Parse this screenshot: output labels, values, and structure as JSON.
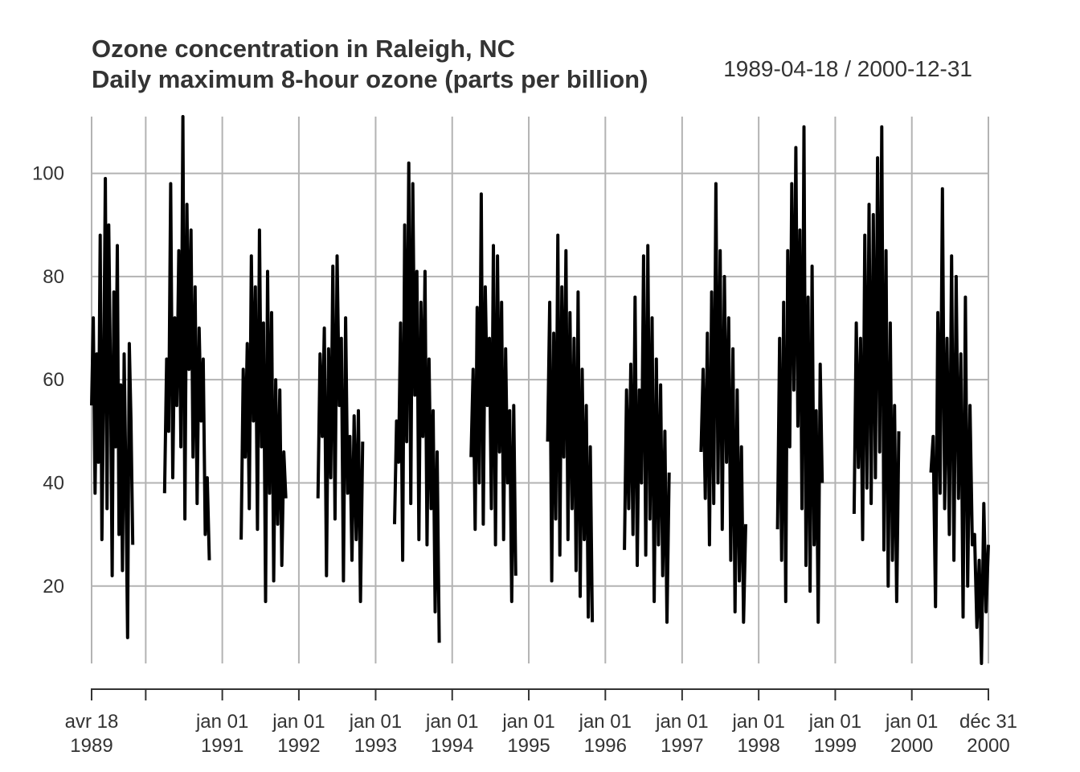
{
  "chart_data": {
    "type": "line",
    "title": "Ozone concentration in Raleigh, NC",
    "subtitle": "Daily maximum 8-hour ozone (parts per billion)",
    "date_range": "1989-04-18 / 2000-12-31",
    "xlabel": "",
    "ylabel": "",
    "x_range": [
      "1989-04-18",
      "2000-12-31"
    ],
    "ylim": [
      5,
      111
    ],
    "y_ticks": [
      20,
      40,
      60,
      80,
      100
    ],
    "grid": true,
    "x_ticks": [
      {
        "date": "1989-04-18",
        "label1": "avr 18",
        "label2": "1989"
      },
      {
        "date": "1990-01-01",
        "label1": "",
        "label2": ""
      },
      {
        "date": "1991-01-01",
        "label1": "jan 01",
        "label2": "1991"
      },
      {
        "date": "1992-01-01",
        "label1": "jan 01",
        "label2": "1992"
      },
      {
        "date": "1993-01-01",
        "label1": "jan 01",
        "label2": "1993"
      },
      {
        "date": "1994-01-01",
        "label1": "jan 01",
        "label2": "1994"
      },
      {
        "date": "1995-01-01",
        "label1": "jan 01",
        "label2": "1995"
      },
      {
        "date": "1996-01-01",
        "label1": "jan 01",
        "label2": "1996"
      },
      {
        "date": "1997-01-01",
        "label1": "jan 01",
        "label2": "1997"
      },
      {
        "date": "1998-01-01",
        "label1": "jan 01",
        "label2": "1998"
      },
      {
        "date": "1999-01-01",
        "label1": "jan 01",
        "label2": "1999"
      },
      {
        "date": "2000-01-01",
        "label1": "jan 01",
        "label2": "2000"
      },
      {
        "date": "2000-12-31",
        "label1": "déc 31",
        "label2": "2000"
      }
    ],
    "series": [
      {
        "color": "#000000",
        "segments": [
          {
            "start": "1989-04-18",
            "end": "1989-10-31",
            "min": 10,
            "max": 99,
            "values": [
              55,
              72,
              38,
              65,
              44,
              88,
              29,
              58,
              99,
              35,
              90,
              61,
              22,
              77,
              47,
              86,
              30,
              59,
              23,
              65,
              41,
              10,
              67,
              52,
              28
            ]
          },
          {
            "start": "1990-04-01",
            "end": "1990-10-31",
            "min": 25,
            "max": 111,
            "values": [
              38,
              64,
              50,
              98,
              41,
              72,
              55,
              85,
              47,
              111,
              33,
              94,
              62,
              89,
              45,
              78,
              36,
              70,
              52,
              64,
              30,
              41,
              25
            ]
          },
          {
            "start": "1991-04-01",
            "end": "1991-10-31",
            "min": 17,
            "max": 89,
            "values": [
              29,
              62,
              45,
              67,
              35,
              84,
              52,
              78,
              31,
              89,
              47,
              71,
              17,
              81,
              38,
              73,
              21,
              60,
              32,
              58,
              24,
              46,
              37
            ]
          },
          {
            "start": "1992-04-01",
            "end": "1992-10-31",
            "min": 17,
            "max": 84,
            "values": [
              37,
              65,
              49,
              70,
              22,
              66,
              41,
              82,
              33,
              84,
              55,
              68,
              21,
              72,
              38,
              49,
              25,
              53,
              29,
              54,
              17,
              48
            ]
          },
          {
            "start": "1993-04-01",
            "end": "1993-10-31",
            "min": 9,
            "max": 102,
            "values": [
              32,
              52,
              44,
              71,
              25,
              90,
              48,
              102,
              36,
              98,
              57,
              81,
              29,
              75,
              49,
              81,
              28,
              64,
              35,
              54,
              15,
              46,
              9
            ]
          },
          {
            "start": "1994-04-01",
            "end": "1994-10-31",
            "min": 17,
            "max": 96,
            "values": [
              45,
              62,
              31,
              74,
              40,
              96,
              32,
              78,
              55,
              68,
              35,
              86,
              28,
              84,
              46,
              75,
              29,
              66,
              40,
              54,
              17,
              55,
              22
            ]
          },
          {
            "start": "1995-04-01",
            "end": "1995-10-31",
            "min": 13,
            "max": 88,
            "values": [
              48,
              75,
              21,
              69,
              33,
              88,
              26,
              78,
              45,
              85,
              29,
              73,
              35,
              68,
              23,
              77,
              18,
              62,
              29,
              55,
              14,
              47,
              13
            ]
          },
          {
            "start": "1996-04-01",
            "end": "1996-10-31",
            "min": 13,
            "max": 86,
            "values": [
              27,
              58,
              35,
              63,
              30,
              76,
              24,
              58,
              40,
              84,
              26,
              86,
              33,
              72,
              17,
              64,
              28,
              59,
              22,
              50,
              13,
              42
            ]
          },
          {
            "start": "1997-04-01",
            "end": "1997-10-31",
            "min": 13,
            "max": 98,
            "values": [
              46,
              62,
              37,
              69,
              28,
              77,
              36,
              98,
              40,
              85,
              31,
              80,
              44,
              72,
              25,
              66,
              15,
              58,
              21,
              47,
              13,
              32
            ]
          },
          {
            "start": "1998-04-01",
            "end": "1998-10-31",
            "min": 13,
            "max": 109,
            "values": [
              31,
              68,
              25,
              75,
              17,
              85,
              47,
              98,
              58,
              105,
              51,
              89,
              35,
              109,
              24,
              76,
              19,
              82,
              28,
              54,
              13,
              63,
              40
            ]
          },
          {
            "start": "1999-04-01",
            "end": "1999-10-31",
            "min": 17,
            "max": 109,
            "values": [
              34,
              71,
              43,
              68,
              29,
              88,
              39,
              94,
              36,
              92,
              41,
              103,
              46,
              109,
              27,
              85,
              20,
              71,
              25,
              55,
              17,
              50
            ]
          },
          {
            "start": "2000-04-01",
            "end": "2000-12-31",
            "min": 5,
            "max": 97,
            "values": [
              42,
              49,
              16,
              73,
              38,
              97,
              35,
              68,
              30,
              84,
              25,
              80,
              37,
              65,
              14,
              76,
              20,
              55,
              28,
              30,
              12,
              25,
              5,
              36,
              15,
              28
            ]
          }
        ]
      }
    ]
  }
}
